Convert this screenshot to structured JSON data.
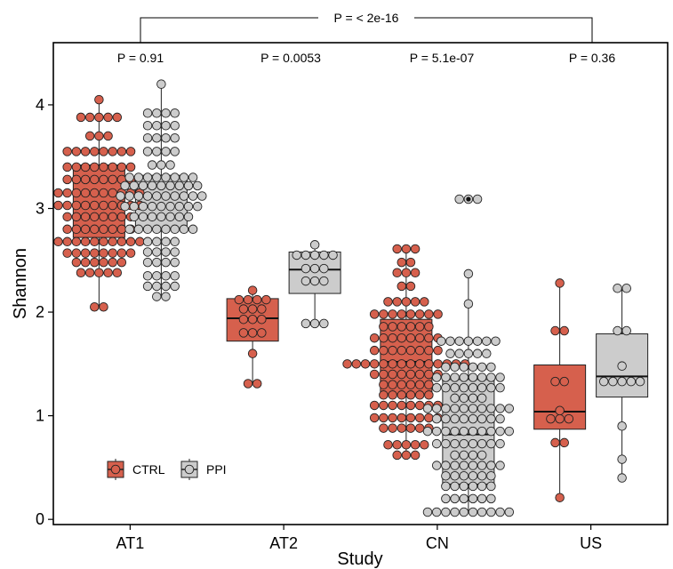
{
  "chart_data": {
    "type": "boxplot",
    "xlabel": "Study",
    "ylabel": "Shannon",
    "ylim": [
      -0.05,
      4.6
    ],
    "yticks": [
      0,
      1,
      2,
      3,
      4
    ],
    "categories": [
      "AT1",
      "AT2",
      "CN",
      "US"
    ],
    "groups": [
      "CTRL",
      "PPI"
    ],
    "colors": {
      "CTRL": "#d6604d",
      "PPI": "#cccccc",
      "outline": "#222222"
    },
    "legend_position": "bottom-left",
    "overall_pvalue_label": "P = < 2e-16",
    "pvalue_labels": [
      "P = 0.91",
      "P = 0.0053",
      "P = 5.1e-07",
      "P = 0.36"
    ],
    "boxes": [
      {
        "study": "AT1",
        "group": "CTRL",
        "q1": 2.72,
        "median": 3.03,
        "q3": 3.42,
        "whisker_low": 2.05,
        "whisker_high": 4.05
      },
      {
        "study": "AT1",
        "group": "PPI",
        "q1": 2.8,
        "median": 3.12,
        "q3": 3.32,
        "whisker_low": 2.15,
        "whisker_high": 4.2
      },
      {
        "study": "AT2",
        "group": "CTRL",
        "q1": 1.72,
        "median": 1.94,
        "q3": 2.13,
        "whisker_low": 1.31,
        "whisker_high": 2.21
      },
      {
        "study": "AT2",
        "group": "PPI",
        "q1": 2.18,
        "median": 2.41,
        "q3": 2.58,
        "whisker_low": 1.89,
        "whisker_high": 2.65
      },
      {
        "study": "CN",
        "group": "CTRL",
        "q1": 1.2,
        "median": 1.52,
        "q3": 1.93,
        "whisker_low": 0.59,
        "whisker_high": 2.61
      },
      {
        "study": "CN",
        "group": "PPI",
        "q1": 0.34,
        "median": 0.82,
        "q3": 1.35,
        "whisker_low": 0.07,
        "whisker_high": 2.37
      },
      {
        "study": "US",
        "group": "CTRL",
        "q1": 0.87,
        "median": 1.04,
        "q3": 1.49,
        "whisker_low": 0.21,
        "whisker_high": 2.28
      },
      {
        "study": "US",
        "group": "PPI",
        "q1": 1.18,
        "median": 1.38,
        "q3": 1.79,
        "whisker_low": 0.4,
        "whisker_high": 2.23
      }
    ],
    "outliers": [
      {
        "study": "CN",
        "group": "PPI",
        "y": 3.09
      }
    ],
    "points": [
      {
        "study": "AT1",
        "group": "CTRL",
        "rows": [
          {
            "y": 4.05,
            "n": 1
          },
          {
            "y": 3.88,
            "n": 5
          },
          {
            "y": 3.7,
            "n": 3
          },
          {
            "y": 3.55,
            "n": 8
          },
          {
            "y": 3.4,
            "n": 8
          },
          {
            "y": 3.28,
            "n": 8
          },
          {
            "y": 3.15,
            "n": 10
          },
          {
            "y": 3.03,
            "n": 10
          },
          {
            "y": 2.92,
            "n": 8
          },
          {
            "y": 2.8,
            "n": 8
          },
          {
            "y": 2.68,
            "n": 10
          },
          {
            "y": 2.57,
            "n": 8
          },
          {
            "y": 2.48,
            "n": 6
          },
          {
            "y": 2.38,
            "n": 5
          },
          {
            "y": 2.05,
            "n": 2
          }
        ]
      },
      {
        "study": "AT1",
        "group": "PPI",
        "rows": [
          {
            "y": 4.2,
            "n": 1
          },
          {
            "y": 3.92,
            "n": 4
          },
          {
            "y": 3.8,
            "n": 4
          },
          {
            "y": 3.68,
            "n": 4
          },
          {
            "y": 3.55,
            "n": 4
          },
          {
            "y": 3.42,
            "n": 3
          },
          {
            "y": 3.3,
            "n": 8
          },
          {
            "y": 3.22,
            "n": 9
          },
          {
            "y": 3.12,
            "n": 10
          },
          {
            "y": 3.02,
            "n": 9
          },
          {
            "y": 2.92,
            "n": 7
          },
          {
            "y": 2.8,
            "n": 8
          },
          {
            "y": 2.68,
            "n": 4
          },
          {
            "y": 2.58,
            "n": 4
          },
          {
            "y": 2.48,
            "n": 4
          },
          {
            "y": 2.35,
            "n": 4
          },
          {
            "y": 2.25,
            "n": 4
          },
          {
            "y": 2.15,
            "n": 2
          }
        ]
      },
      {
        "study": "AT2",
        "group": "CTRL",
        "rows": [
          {
            "y": 2.21,
            "n": 1
          },
          {
            "y": 2.12,
            "n": 4
          },
          {
            "y": 2.03,
            "n": 3
          },
          {
            "y": 1.93,
            "n": 3
          },
          {
            "y": 1.8,
            "n": 3
          },
          {
            "y": 1.6,
            "n": 1
          },
          {
            "y": 1.31,
            "n": 2
          }
        ]
      },
      {
        "study": "AT2",
        "group": "PPI",
        "rows": [
          {
            "y": 2.65,
            "n": 1
          },
          {
            "y": 2.55,
            "n": 5
          },
          {
            "y": 2.42,
            "n": 3
          },
          {
            "y": 2.3,
            "n": 3
          },
          {
            "y": 1.89,
            "n": 3
          }
        ]
      },
      {
        "study": "CN",
        "group": "CTRL",
        "rows": [
          {
            "y": 2.61,
            "n": 3
          },
          {
            "y": 2.48,
            "n": 2
          },
          {
            "y": 2.38,
            "n": 3
          },
          {
            "y": 2.25,
            "n": 2
          },
          {
            "y": 2.1,
            "n": 5
          },
          {
            "y": 1.98,
            "n": 8
          },
          {
            "y": 1.86,
            "n": 6
          },
          {
            "y": 1.75,
            "n": 8
          },
          {
            "y": 1.63,
            "n": 8
          },
          {
            "y": 1.5,
            "n": 14
          },
          {
            "y": 1.4,
            "n": 8
          },
          {
            "y": 1.3,
            "n": 6
          },
          {
            "y": 1.2,
            "n": 6
          },
          {
            "y": 1.1,
            "n": 8
          },
          {
            "y": 0.98,
            "n": 8
          },
          {
            "y": 0.88,
            "n": 6
          },
          {
            "y": 0.72,
            "n": 5
          },
          {
            "y": 0.62,
            "n": 3
          }
        ]
      },
      {
        "study": "CN",
        "group": "PPI",
        "rows": [
          {
            "y": 3.09,
            "n": 3
          },
          {
            "y": 2.37,
            "n": 1
          },
          {
            "y": 2.08,
            "n": 1
          },
          {
            "y": 1.72,
            "n": 7
          },
          {
            "y": 1.6,
            "n": 5
          },
          {
            "y": 1.47,
            "n": 6
          },
          {
            "y": 1.37,
            "n": 8
          },
          {
            "y": 1.27,
            "n": 8
          },
          {
            "y": 1.17,
            "n": 4
          },
          {
            "y": 1.07,
            "n": 10
          },
          {
            "y": 0.97,
            "n": 8
          },
          {
            "y": 0.85,
            "n": 10
          },
          {
            "y": 0.73,
            "n": 8
          },
          {
            "y": 0.62,
            "n": 4
          },
          {
            "y": 0.52,
            "n": 8
          },
          {
            "y": 0.42,
            "n": 6
          },
          {
            "y": 0.32,
            "n": 6
          },
          {
            "y": 0.2,
            "n": 6
          },
          {
            "y": 0.07,
            "n": 10
          }
        ]
      },
      {
        "study": "US",
        "group": "CTRL",
        "rows": [
          {
            "y": 2.28,
            "n": 1
          },
          {
            "y": 1.82,
            "n": 2
          },
          {
            "y": 1.33,
            "n": 2
          },
          {
            "y": 1.05,
            "n": 1
          },
          {
            "y": 0.97,
            "n": 3
          },
          {
            "y": 0.74,
            "n": 2
          },
          {
            "y": 0.21,
            "n": 1
          }
        ]
      },
      {
        "study": "US",
        "group": "PPI",
        "rows": [
          {
            "y": 2.23,
            "n": 2
          },
          {
            "y": 1.82,
            "n": 2
          },
          {
            "y": 1.48,
            "n": 1
          },
          {
            "y": 1.33,
            "n": 5
          },
          {
            "y": 0.9,
            "n": 1
          },
          {
            "y": 0.58,
            "n": 1
          },
          {
            "y": 0.4,
            "n": 1
          }
        ]
      }
    ]
  }
}
